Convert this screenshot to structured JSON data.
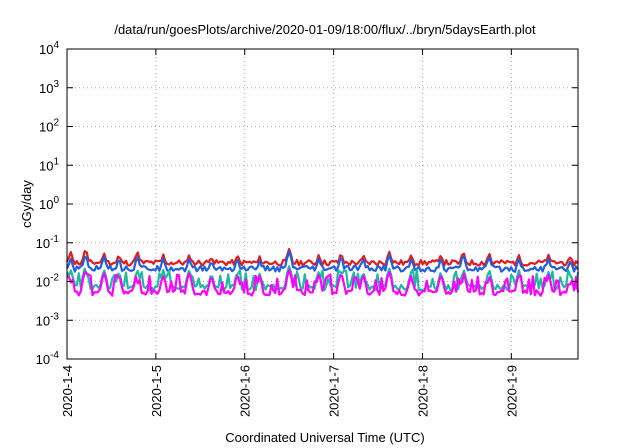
{
  "chart_data": {
    "type": "line",
    "title": "/data/run/goesPlots/archive/2020-01-09/18:00/flux/../bryn/5daysEarth.plot",
    "xlabel": "Coordinated Universal Time (UTC)",
    "ylabel": "cGy/day",
    "yscale": "log",
    "ylim": [
      0.0001,
      10000
    ],
    "y_ticks": [
      {
        "value": 0.0001,
        "base": "10",
        "exp": "-4"
      },
      {
        "value": 0.001,
        "base": "10",
        "exp": "-3"
      },
      {
        "value": 0.01,
        "base": "10",
        "exp": "-2"
      },
      {
        "value": 0.1,
        "base": "10",
        "exp": "-1"
      },
      {
        "value": 1,
        "base": "10",
        "exp": "0"
      },
      {
        "value": 10,
        "base": "10",
        "exp": "1"
      },
      {
        "value": 100,
        "base": "10",
        "exp": "2"
      },
      {
        "value": 1000,
        "base": "10",
        "exp": "3"
      },
      {
        "value": 10000,
        "base": "10",
        "exp": "4"
      }
    ],
    "xlim": [
      "2020-01-04T00:00",
      "2020-01-09T18:00"
    ],
    "x_ticks": [
      {
        "label": "2020-1-4",
        "value": "2020-01-04"
      },
      {
        "label": "2020-1-5",
        "value": "2020-01-05"
      },
      {
        "label": "2020-1-6",
        "value": "2020-01-06"
      },
      {
        "label": "2020-1-7",
        "value": "2020-01-07"
      },
      {
        "label": "2020-1-8",
        "value": "2020-01-08"
      },
      {
        "label": "2020-1-9",
        "value": "2020-01-09"
      }
    ],
    "grid": true,
    "legend": "none",
    "series": [
      {
        "color": "#e41a1c",
        "base": 0.03,
        "spikes": [
          [
            "2020-01-04T01:00",
            0.06
          ],
          [
            "2020-01-04T05:00",
            0.07
          ],
          [
            "2020-01-04T10:00",
            0.055
          ],
          [
            "2020-01-04T14:00",
            0.05
          ],
          [
            "2020-01-04T19:00",
            0.06
          ],
          [
            "2020-01-05T02:00",
            0.05
          ],
          [
            "2020-01-05T09:00",
            0.05
          ],
          [
            "2020-01-05T15:00",
            0.045
          ],
          [
            "2020-01-05T22:00",
            0.05
          ],
          [
            "2020-01-06T04:00",
            0.045
          ],
          [
            "2020-01-06T12:00",
            0.07
          ],
          [
            "2020-01-06T20:00",
            0.05
          ],
          [
            "2020-01-07T02:00",
            0.055
          ],
          [
            "2020-01-07T08:00",
            0.05
          ],
          [
            "2020-01-07T15:00",
            0.06
          ],
          [
            "2020-01-07T21:00",
            0.05
          ],
          [
            "2020-01-08T05:00",
            0.05
          ],
          [
            "2020-01-08T11:00",
            0.06
          ],
          [
            "2020-01-08T18:00",
            0.055
          ],
          [
            "2020-01-09T02:00",
            0.05
          ],
          [
            "2020-01-09T10:00",
            0.05
          ],
          [
            "2020-01-09T16:00",
            0.045
          ]
        ]
      },
      {
        "color": "#1f5fe0",
        "base": 0.021,
        "spikes": [
          [
            "2020-01-04T01:00",
            0.04
          ],
          [
            "2020-01-04T05:00",
            0.05
          ],
          [
            "2020-01-04T10:00",
            0.045
          ],
          [
            "2020-01-04T14:00",
            0.04
          ],
          [
            "2020-01-04T19:00",
            0.045
          ],
          [
            "2020-01-05T02:00",
            0.04
          ],
          [
            "2020-01-05T09:00",
            0.04
          ],
          [
            "2020-01-05T15:00",
            0.035
          ],
          [
            "2020-01-05T22:00",
            0.04
          ],
          [
            "2020-01-06T04:00",
            0.035
          ],
          [
            "2020-01-06T12:00",
            0.06
          ],
          [
            "2020-01-06T20:00",
            0.04
          ],
          [
            "2020-01-07T02:00",
            0.045
          ],
          [
            "2020-01-07T08:00",
            0.04
          ],
          [
            "2020-01-07T15:00",
            0.05
          ],
          [
            "2020-01-07T21:00",
            0.04
          ],
          [
            "2020-01-08T05:00",
            0.04
          ],
          [
            "2020-01-08T11:00",
            0.05
          ],
          [
            "2020-01-08T18:00",
            0.045
          ],
          [
            "2020-01-09T02:00",
            0.04
          ],
          [
            "2020-01-09T10:00",
            0.04
          ],
          [
            "2020-01-09T16:00",
            0.035
          ]
        ]
      },
      {
        "color": "#20b8a0",
        "base": 0.007,
        "spikes": [
          [
            "2020-01-04T01:00",
            0.02
          ],
          [
            "2020-01-04T05:00",
            0.025
          ],
          [
            "2020-01-04T10:00",
            0.02
          ],
          [
            "2020-01-04T14:00",
            0.018
          ],
          [
            "2020-01-04T19:00",
            0.02
          ],
          [
            "2020-01-05T02:00",
            0.018
          ],
          [
            "2020-01-05T09:00",
            0.02
          ],
          [
            "2020-01-05T15:00",
            0.016
          ],
          [
            "2020-01-05T22:00",
            0.018
          ],
          [
            "2020-01-06T04:00",
            0.016
          ],
          [
            "2020-01-06T12:00",
            0.025
          ],
          [
            "2020-01-06T20:00",
            0.018
          ],
          [
            "2020-01-07T02:00",
            0.02
          ],
          [
            "2020-01-07T08:00",
            0.018
          ],
          [
            "2020-01-07T15:00",
            0.022
          ],
          [
            "2020-01-07T21:00",
            0.018
          ],
          [
            "2020-01-08T05:00",
            0.018
          ],
          [
            "2020-01-08T11:00",
            0.022
          ],
          [
            "2020-01-08T18:00",
            0.02
          ],
          [
            "2020-01-09T02:00",
            0.018
          ],
          [
            "2020-01-09T10:00",
            0.018
          ],
          [
            "2020-01-09T16:00",
            0.016
          ]
        ]
      },
      {
        "color": "#ff00ff",
        "base": 0.005,
        "spikes": [
          [
            "2020-01-04T01:00",
            0.018
          ],
          [
            "2020-01-04T05:00",
            0.02
          ],
          [
            "2020-01-04T10:00",
            0.017
          ],
          [
            "2020-01-04T14:00",
            0.015
          ],
          [
            "2020-01-04T19:00",
            0.018
          ],
          [
            "2020-01-05T02:00",
            0.015
          ],
          [
            "2020-01-05T09:00",
            0.017
          ],
          [
            "2020-01-05T15:00",
            0.014
          ],
          [
            "2020-01-05T22:00",
            0.015
          ],
          [
            "2020-01-06T04:00",
            0.014
          ],
          [
            "2020-01-06T12:00",
            0.02
          ],
          [
            "2020-01-06T20:00",
            0.015
          ],
          [
            "2020-01-07T02:00",
            0.017
          ],
          [
            "2020-01-07T08:00",
            0.015
          ],
          [
            "2020-01-07T15:00",
            0.018
          ],
          [
            "2020-01-07T21:00",
            0.015
          ],
          [
            "2020-01-08T05:00",
            0.015
          ],
          [
            "2020-01-08T11:00",
            0.018
          ],
          [
            "2020-01-08T18:00",
            0.017
          ],
          [
            "2020-01-09T02:00",
            0.015
          ],
          [
            "2020-01-09T10:00",
            0.015
          ],
          [
            "2020-01-09T16:00",
            0.014
          ]
        ]
      }
    ]
  }
}
